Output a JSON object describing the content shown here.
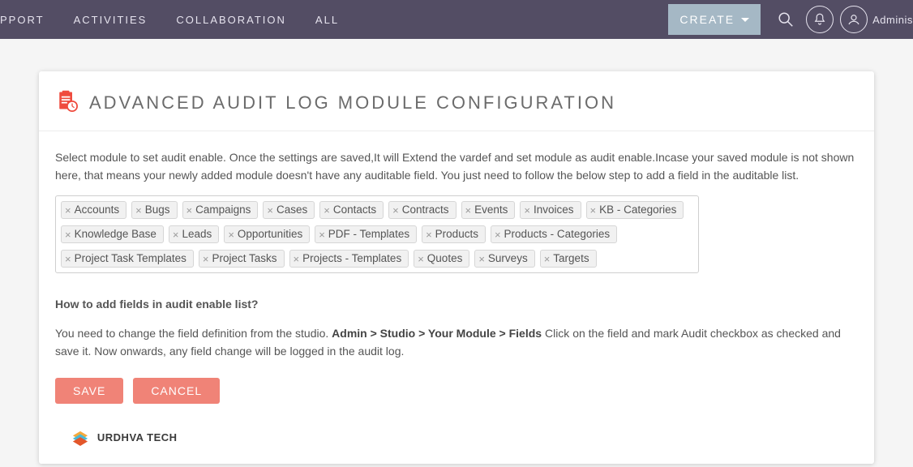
{
  "colors": {
    "topbar_bg": "#534d64",
    "create_bg": "#a5b8c5",
    "accent": "#f08377",
    "icon_red": "#ef4b3e"
  },
  "nav": {
    "items": [
      "PPORT",
      "ACTIVITIES",
      "COLLABORATION",
      "ALL"
    ]
  },
  "header": {
    "create_label": "CREATE",
    "username": "Administ"
  },
  "page": {
    "title": "ADVANCED AUDIT LOG MODULE CONFIGURATION",
    "description": "Select module to set audit enable. Once the settings are saved,It will Extend the vardef and set module as audit enable.Incase your saved module is not shown here, that means your newly added module doesn't have any auditable field. You just need to follow the below step to add a field in the auditable list.",
    "tags": [
      "Accounts",
      "Bugs",
      "Campaigns",
      "Cases",
      "Contacts",
      "Contracts",
      "Events",
      "Invoices",
      "KB - Categories",
      "Knowledge Base",
      "Leads",
      "Opportunities",
      "PDF - Templates",
      "Products",
      "Products - Categories",
      "Project Task Templates",
      "Project Tasks",
      "Projects - Templates",
      "Quotes",
      "Surveys",
      "Targets"
    ],
    "howto_title": "How to add fields in audit enable list?",
    "howto_prefix": "You need to change the field definition from the studio. ",
    "howto_path": "Admin > Studio > Your Module > Fields",
    "howto_suffix": " Click on the field and mark Audit checkbox as checked and save it. Now onwards, any field change will be logged in the audit log.",
    "save_label": "SAVE",
    "cancel_label": "CANCEL",
    "footer_brand": "URDHVA TECH"
  }
}
